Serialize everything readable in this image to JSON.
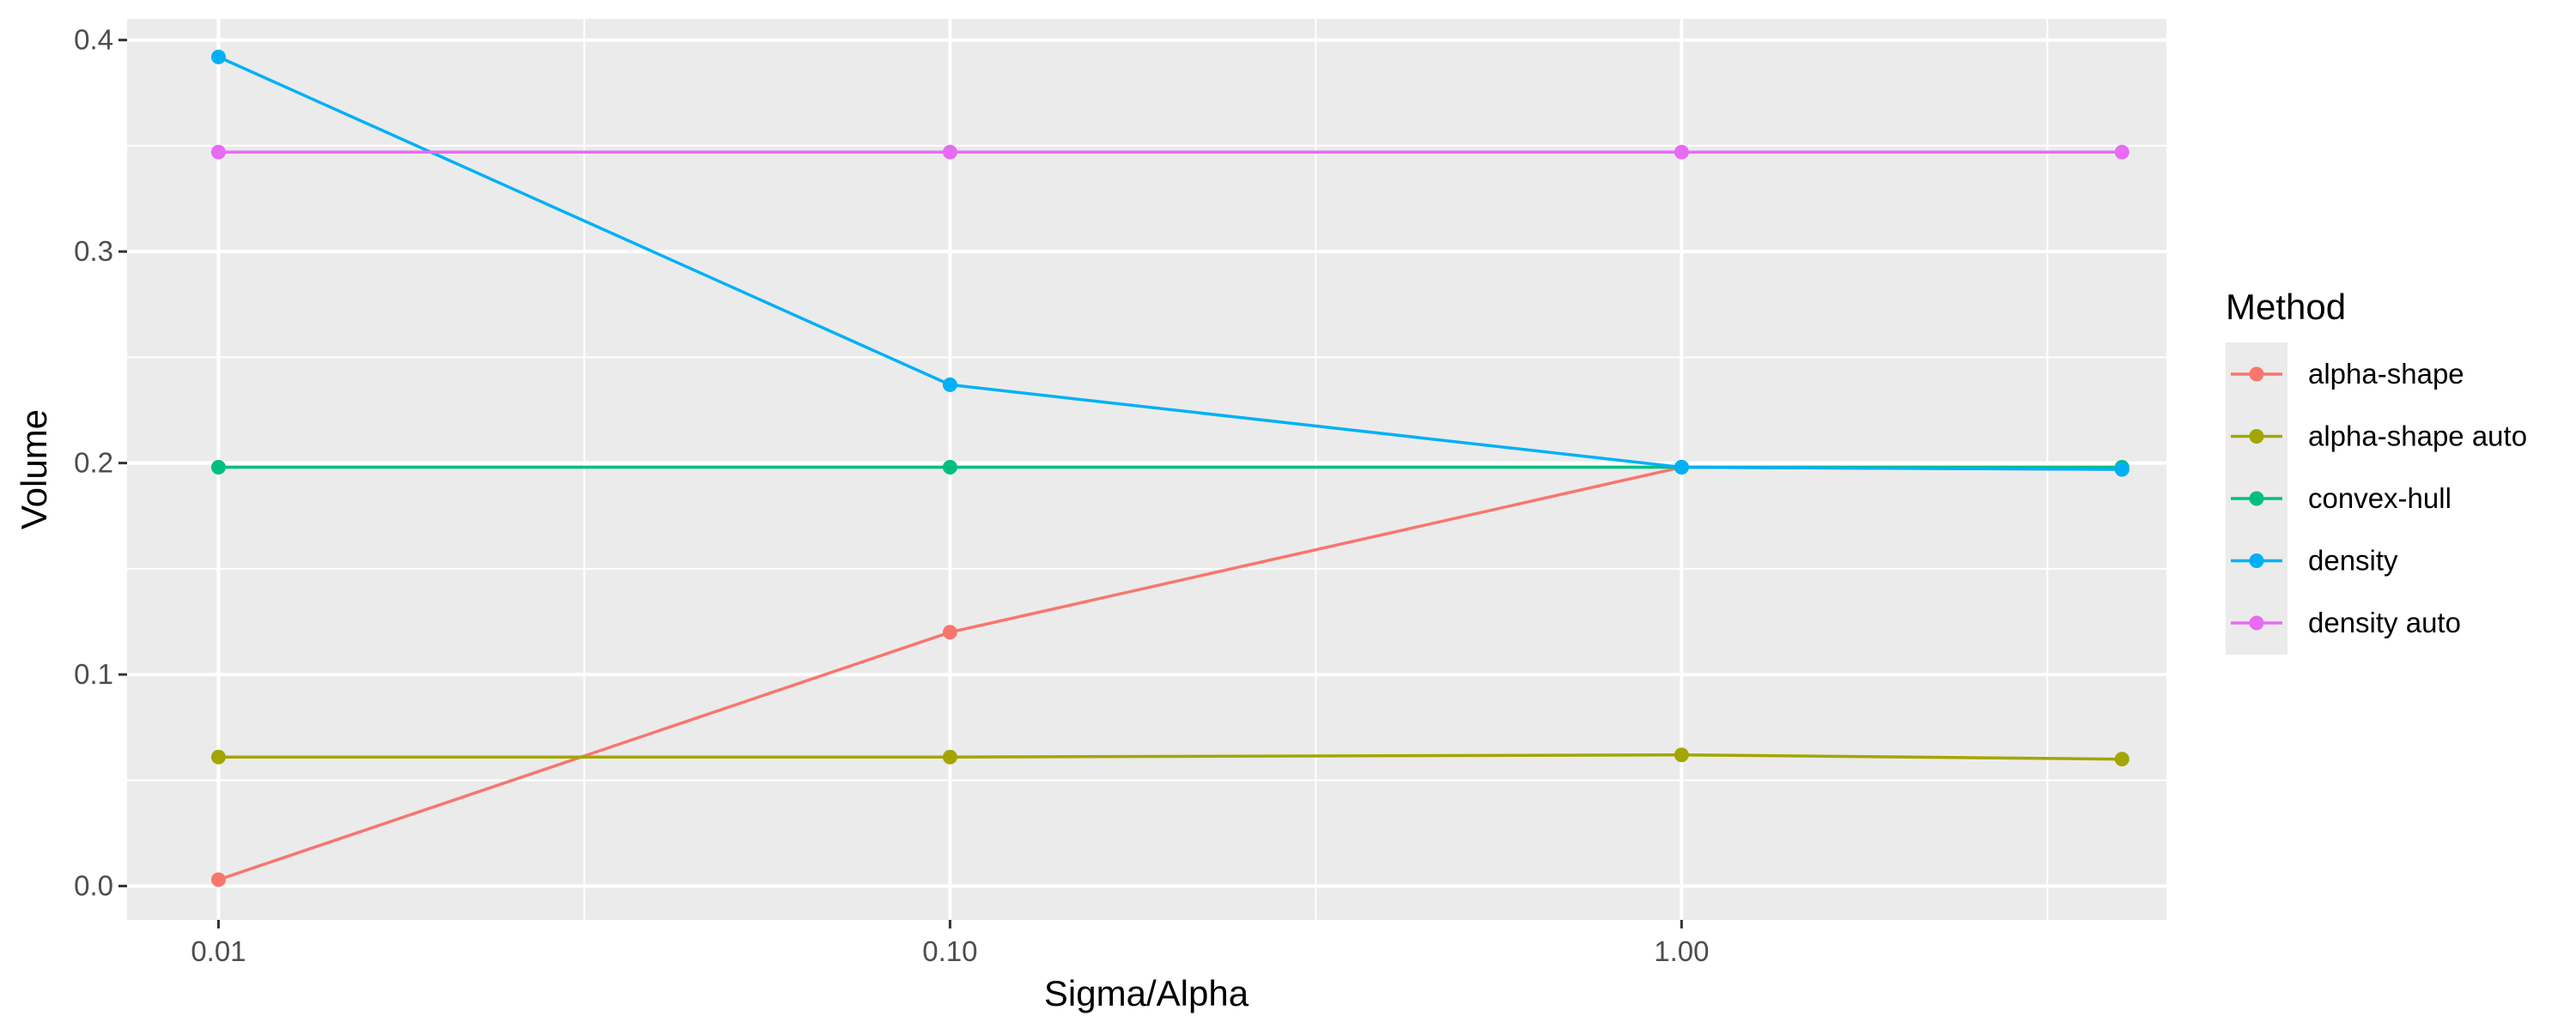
{
  "chart_data": {
    "type": "line",
    "xlabel": "Sigma/Alpha",
    "ylabel": "Volume",
    "x_scale": "log10",
    "xlim": [
      0.0075,
      4.6
    ],
    "ylim": [
      -0.016,
      0.41
    ],
    "x_ticks": [
      {
        "value": 0.01,
        "label": "0.01"
      },
      {
        "value": 0.1,
        "label": "0.10"
      },
      {
        "value": 1,
        "label": "1.00"
      }
    ],
    "y_ticks": [
      {
        "value": 0.0,
        "label": "0.0"
      },
      {
        "value": 0.1,
        "label": "0.1"
      },
      {
        "value": 0.2,
        "label": "0.2"
      },
      {
        "value": 0.3,
        "label": "0.3"
      },
      {
        "value": 0.4,
        "label": "0.4"
      }
    ],
    "grid": true,
    "legend": {
      "title": "Method",
      "placement": "right"
    },
    "series": [
      {
        "name": "alpha-shape",
        "color": "#F8766D",
        "x": [
          0.01,
          0.1,
          1.0,
          4.0
        ],
        "y": [
          0.003,
          0.12,
          0.198,
          0.197
        ]
      },
      {
        "name": "alpha-shape auto",
        "color": "#A3A500",
        "x": [
          0.01,
          0.1,
          1.0,
          4.0
        ],
        "y": [
          0.061,
          0.061,
          0.062,
          0.06
        ]
      },
      {
        "name": "convex-hull",
        "color": "#00BF7D",
        "x": [
          0.01,
          0.1,
          1.0,
          4.0
        ],
        "y": [
          0.198,
          0.198,
          0.198,
          0.198
        ]
      },
      {
        "name": "density",
        "color": "#00B0F6",
        "x": [
          0.01,
          0.1,
          1.0,
          4.0
        ],
        "y": [
          0.392,
          0.237,
          0.198,
          0.197
        ]
      },
      {
        "name": "density auto",
        "color": "#E76BF3",
        "x": [
          0.01,
          0.1,
          1.0,
          4.0
        ],
        "y": [
          0.347,
          0.347,
          0.347,
          0.347
        ]
      }
    ]
  }
}
